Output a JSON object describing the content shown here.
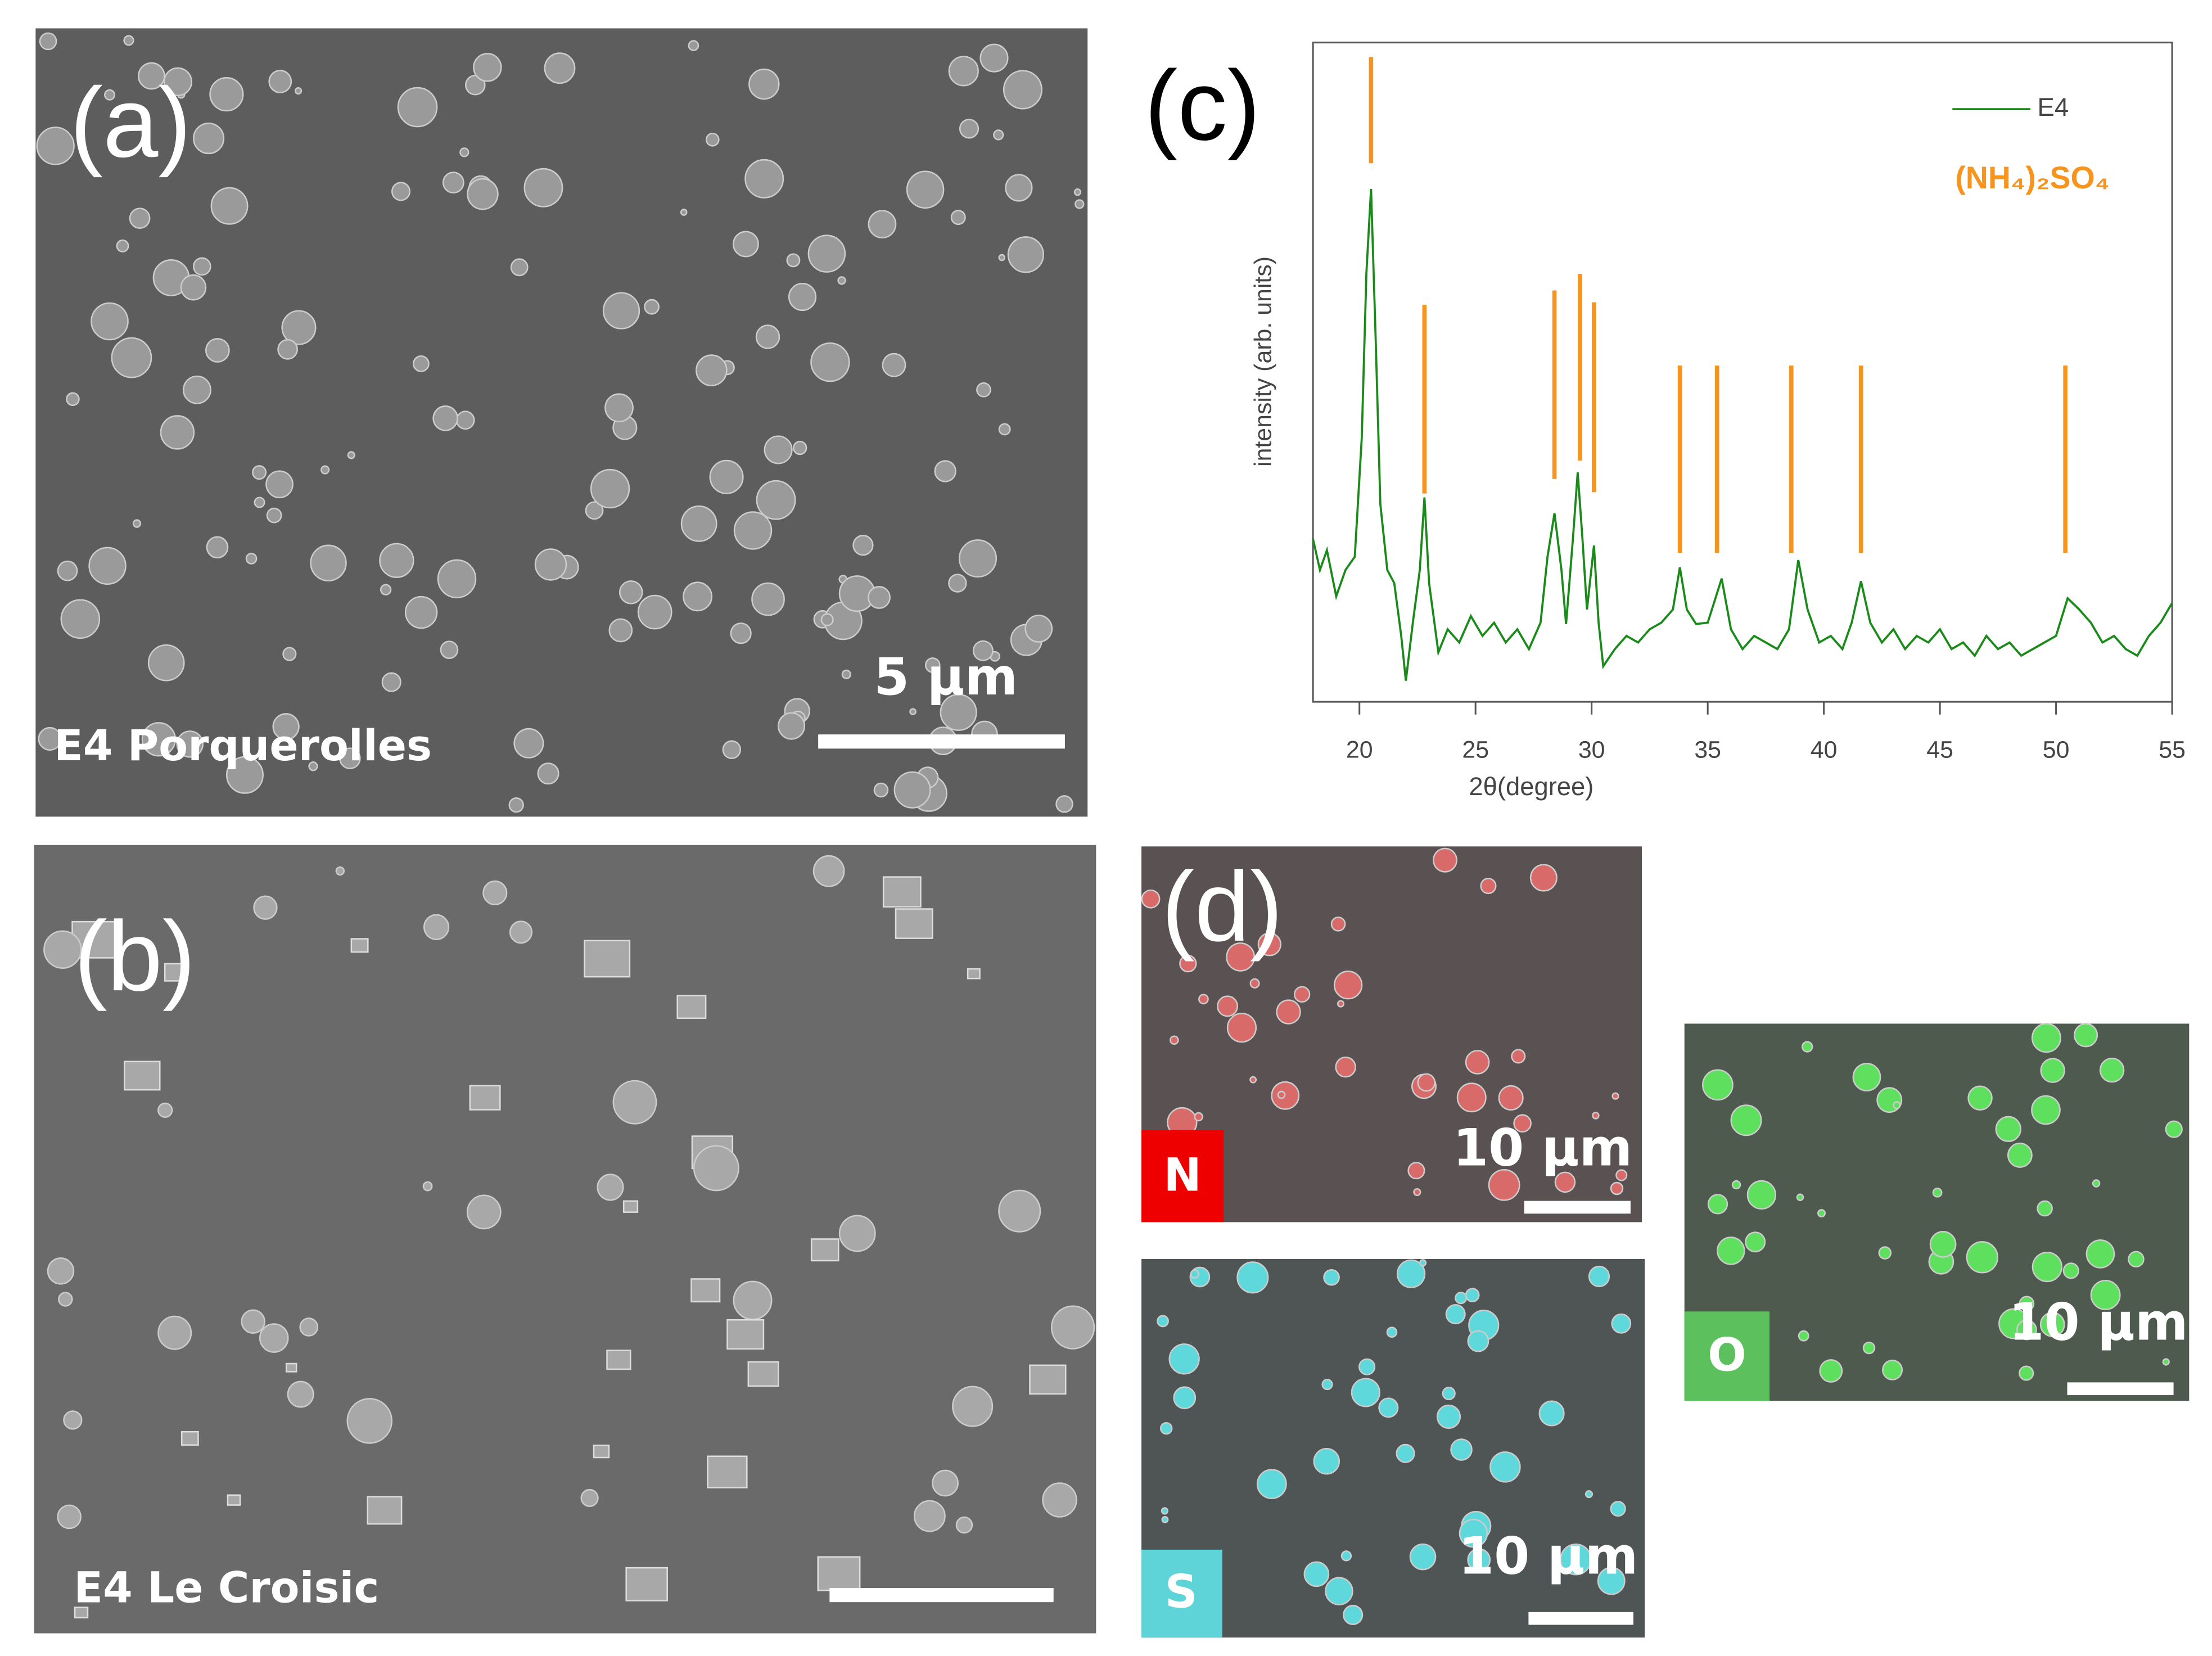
{
  "panels": {
    "a": {
      "label": "(a)",
      "sample": "E4 Porquerolles",
      "scale": "5 µm"
    },
    "b": {
      "label": "(b)",
      "sample": "E4 Le Croisic"
    },
    "c": {
      "label": "(c)"
    },
    "d": {
      "label": "(d)",
      "maps": [
        {
          "element": "N",
          "scale": "10 µm"
        },
        {
          "element": "S",
          "scale": "10 µm"
        },
        {
          "element": "O",
          "scale": "10 µm"
        }
      ]
    }
  },
  "chart_data": {
    "type": "line",
    "x_label": "2θ(degree)",
    "y_label": "intensity (arb. units)",
    "xlim": [
      18,
      55
    ],
    "xticks": [
      20,
      25,
      30,
      35,
      40,
      45,
      50,
      55
    ],
    "ylim": [
      0,
      100
    ],
    "legend": "top-right",
    "x": [
      18,
      18.3,
      18.6,
      19,
      19.4,
      19.8,
      20.1,
      20.3,
      20.5,
      20.7,
      20.9,
      21.2,
      21.5,
      21.8,
      22.0,
      22.3,
      22.6,
      22.8,
      23.0,
      23.4,
      23.8,
      24.3,
      24.8,
      25.3,
      25.8,
      26.3,
      26.8,
      27.3,
      27.8,
      28.1,
      28.4,
      28.7,
      28.9,
      29.2,
      29.4,
      29.6,
      29.8,
      30.1,
      30.3,
      30.5,
      31,
      31.5,
      32,
      32.5,
      33,
      33.5,
      33.8,
      34.1,
      34.5,
      35,
      35.6,
      36,
      36.5,
      37,
      37.5,
      38,
      38.5,
      38.9,
      39.3,
      39.8,
      40.3,
      40.8,
      41.2,
      41.6,
      42,
      42.5,
      43,
      43.5,
      44,
      44.5,
      45,
      45.5,
      46,
      46.5,
      47,
      47.5,
      48,
      48.5,
      49,
      49.5,
      50,
      50.5,
      51,
      51.5,
      52,
      52.5,
      53,
      53.5,
      54,
      54.5,
      55
    ],
    "series": [
      {
        "name": "E4",
        "color": "#1a8a1a",
        "values": [
          24.7,
          20,
          23,
          16,
          20,
          22,
          40,
          65,
          77.8,
          55,
          30,
          20,
          18,
          10,
          3.2,
          12,
          20,
          31,
          18,
          7.5,
          11,
          9,
          13,
          10,
          12,
          9,
          11,
          8,
          12,
          22,
          28.6,
          20,
          11.8,
          25,
          34.8,
          25,
          14,
          23.7,
          12,
          5.4,
          8,
          10,
          9,
          11,
          12,
          14,
          20.4,
          14,
          11.8,
          12,
          18.7,
          11,
          8,
          10,
          9,
          8,
          11,
          21.5,
          14,
          9,
          10,
          8,
          12,
          18.3,
          12,
          9,
          11,
          8,
          10,
          9,
          11,
          8,
          9,
          7,
          10,
          8,
          9,
          7,
          8,
          9,
          10,
          15.7,
          14,
          12,
          9,
          10,
          8,
          7,
          10,
          12,
          15
        ]
      }
    ],
    "reference": {
      "name": "(NH₄)₂SO₄",
      "color": "#f7941d",
      "x": [
        20.5,
        22.8,
        28.4,
        29.5,
        30.1,
        33.8,
        35.4,
        38.6,
        41.6,
        50.4
      ],
      "top": [
        97.8,
        60.2,
        62.4,
        64.9,
        60.6,
        51,
        51,
        51,
        51,
        51
      ],
      "bottom": [
        81.7,
        31.6,
        33.8,
        36.6,
        31.8,
        22.6,
        22.6,
        22.6,
        22.6,
        22.6
      ]
    }
  }
}
